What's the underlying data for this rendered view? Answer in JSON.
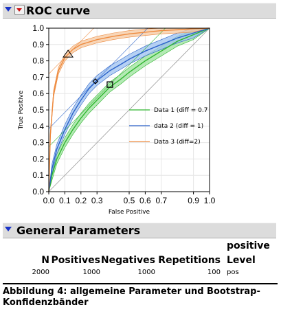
{
  "roc_header": {
    "title": "ROC curve"
  },
  "chart_data": {
    "type": "line",
    "xlabel": "False Positive",
    "ylabel": "True Positive",
    "xlim": [
      0,
      1
    ],
    "ylim": [
      0,
      1
    ],
    "xticks": [
      "0.0",
      "0.1",
      "0.2",
      "0.3",
      "0.5",
      "0.6",
      "0.7",
      "0.9",
      "1.0"
    ],
    "xtick_values": [
      0,
      0.1,
      0.2,
      0.3,
      0.5,
      0.6,
      0.7,
      0.9,
      1.0
    ],
    "yticks": [
      "0.0",
      "0.1",
      "0.2",
      "0.3",
      "0.4",
      "0.5",
      "0.6",
      "0.7",
      "0.8",
      "0.9",
      "1.0"
    ],
    "ytick_values": [
      0,
      0.1,
      0.2,
      0.3,
      0.4,
      0.5,
      0.6,
      0.7,
      0.8,
      0.9,
      1.0
    ],
    "grid": true,
    "legend_position": "right-center",
    "series": [
      {
        "name": "Data 1 (diff = 0.7",
        "color": "#2fb52f",
        "band_color": "#9be39b",
        "x": [
          0,
          0.02,
          0.05,
          0.1,
          0.15,
          0.2,
          0.25,
          0.3,
          0.38,
          0.45,
          0.5,
          0.6,
          0.7,
          0.8,
          0.9,
          1.0
        ],
        "y": [
          0,
          0.1,
          0.2,
          0.3,
          0.38,
          0.45,
          0.51,
          0.56,
          0.64,
          0.69,
          0.73,
          0.8,
          0.86,
          0.92,
          0.96,
          1.0
        ],
        "band": 0.03,
        "marker": {
          "shape": "square",
          "x": 0.38,
          "y": 0.655
        }
      },
      {
        "name": "data 2 (diff = 1)",
        "color": "#2a62c9",
        "band_color": "#9ec2f0",
        "x": [
          0,
          0.02,
          0.05,
          0.1,
          0.15,
          0.2,
          0.25,
          0.3,
          0.38,
          0.45,
          0.5,
          0.6,
          0.7,
          0.8,
          0.9,
          1.0
        ],
        "y": [
          0,
          0.14,
          0.26,
          0.38,
          0.48,
          0.56,
          0.63,
          0.68,
          0.74,
          0.78,
          0.81,
          0.86,
          0.9,
          0.94,
          0.97,
          1.0
        ],
        "band": 0.03,
        "marker": {
          "shape": "diamond",
          "x": 0.29,
          "y": 0.675
        }
      },
      {
        "name": "Data 3 (diff=2)",
        "color": "#ee8a3e",
        "band_color": "#f6c8a0",
        "x": [
          0,
          0.01,
          0.03,
          0.06,
          0.1,
          0.15,
          0.2,
          0.3,
          0.4,
          0.5,
          0.6,
          0.7,
          0.8,
          0.9,
          1.0
        ],
        "y": [
          0,
          0.35,
          0.6,
          0.74,
          0.82,
          0.87,
          0.9,
          0.93,
          0.95,
          0.965,
          0.975,
          0.985,
          0.99,
          0.996,
          1.0
        ],
        "band": 0.02,
        "marker": {
          "shape": "triangle",
          "x": 0.12,
          "y": 0.84
        }
      }
    ]
  },
  "general_header": {
    "title": "General Parameters"
  },
  "parameters": {
    "headers": {
      "n": "N",
      "positives": "Positives",
      "negatives": "Negatives",
      "repetitions": "Repetitions",
      "level_line1": "positive",
      "level_line2": "Level"
    },
    "values": {
      "n": "2000",
      "positives": "1000",
      "negatives": "1000",
      "repetitions": "100",
      "level": "pos"
    }
  },
  "caption": "Abbildung 4: allgemeine Parameter und Bootstrap-Konfidenzbänder"
}
